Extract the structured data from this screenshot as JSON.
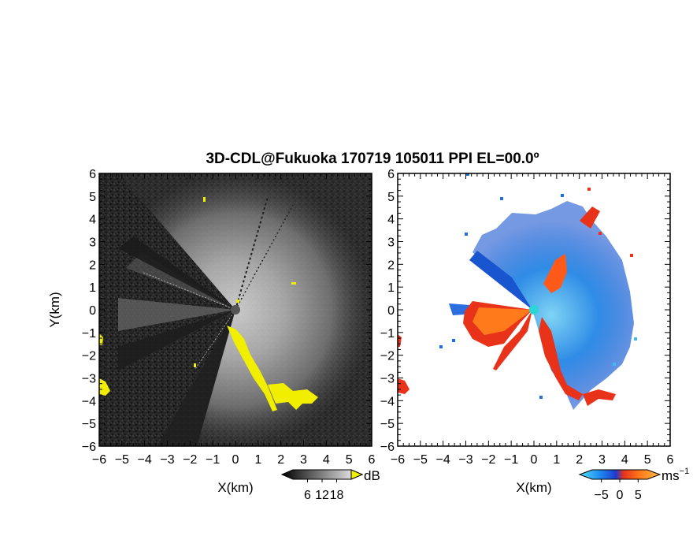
{
  "figure": {
    "title": "3D-CDL@Fukuoka 170719 105011 PPI EL=00.0º",
    "x_axis_label": "X(km)",
    "y_axis_label": "Y(km)"
  },
  "chart_data": [
    {
      "type": "heatmap",
      "panel": "left",
      "xlabel": "X(km)",
      "ylabel": "Y(km)",
      "xlim": [
        -6,
        6
      ],
      "ylim": [
        -6,
        6
      ],
      "x_ticks": [
        -6,
        -5,
        -4,
        -3,
        -2,
        -1,
        0,
        1,
        2,
        3,
        4,
        5,
        6
      ],
      "y_ticks": [
        -6,
        -5,
        -4,
        -3,
        -2,
        -1,
        0,
        1,
        2,
        3,
        4,
        5,
        6
      ],
      "colorbar": {
        "unit": "dB",
        "ticks": [
          6,
          12,
          18
        ],
        "colormap": "grayscale"
      },
      "colors": {
        "background": "#232323",
        "highlight": "#f2ee00"
      }
    },
    {
      "type": "heatmap",
      "panel": "right",
      "xlabel": "X(km)",
      "xlim": [
        -6,
        6
      ],
      "ylim": [
        -6,
        6
      ],
      "x_ticks": [
        -6,
        -5,
        -4,
        -3,
        -2,
        -1,
        0,
        1,
        2,
        3,
        4,
        5,
        6
      ],
      "y_ticks": [
        -6,
        -5,
        -4,
        -3,
        -2,
        -1,
        0,
        1,
        2,
        3,
        4,
        5,
        6
      ],
      "colorbar": {
        "unit": "ms",
        "unit_exponent": "−1",
        "ticks": [
          -5,
          0,
          5
        ],
        "colormap": "cyan-blue-red-orange"
      },
      "colors": {
        "negative": "#1f6fe0",
        "negative_light": "#45b8f0",
        "positive": "#e8321a",
        "positive_light": "#ff7a1a",
        "center": "#2bd6d6"
      }
    }
  ]
}
